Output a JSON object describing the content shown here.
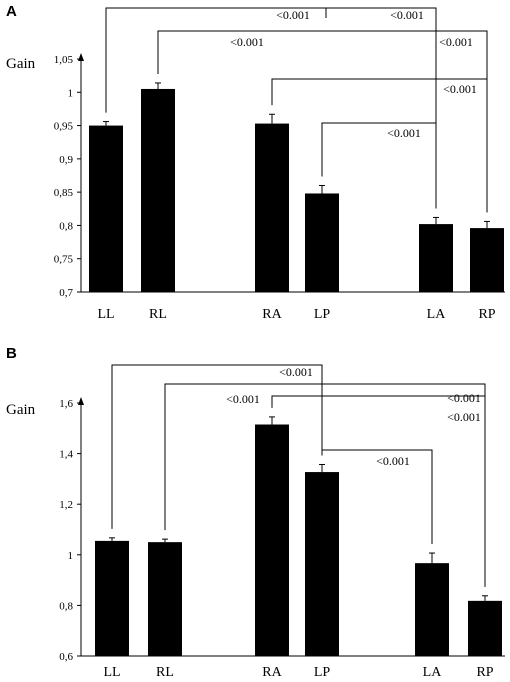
{
  "chart_data": [
    {
      "type": "bar",
      "panel_label": "A",
      "ylabel": "Gain",
      "ylim": [
        0.7,
        1.05
      ],
      "yticks": [
        0.7,
        0.75,
        0.8,
        0.85,
        0.9,
        0.95,
        1,
        1.05
      ],
      "ytick_labels": [
        "0,7",
        "0,75",
        "0,8",
        "0,85",
        "0,9",
        "0,95",
        "1",
        "1,05"
      ],
      "categories": [
        "LL",
        "RL",
        "RA",
        "LP",
        "LA",
        "RP"
      ],
      "values": [
        0.95,
        1.005,
        0.953,
        0.848,
        0.802,
        0.796
      ],
      "errors": [
        0.006,
        0.009,
        0.014,
        0.012,
        0.01,
        0.01
      ],
      "grid": false,
      "comparisons": [
        {
          "from": "LL",
          "to": "LA",
          "label": "<0.001"
        },
        {
          "from": "RL",
          "to": "RP",
          "label": "<0.001"
        },
        {
          "from": "RA",
          "to": "RP",
          "label": "<0.001"
        },
        {
          "from": "LP",
          "to": "LA",
          "label": "<0.001"
        }
      ],
      "comparison_label_positions": [
        {
          "comparison": 0,
          "label": "<0.001",
          "near": "center-left"
        },
        {
          "comparison": 0,
          "label": "<0.001",
          "near": "center-right"
        },
        {
          "comparison": 1,
          "label": "<0.001",
          "near": "left"
        },
        {
          "comparison": 1,
          "label": "<0.001",
          "near": "right"
        },
        {
          "comparison": 2,
          "label": "<0.001",
          "near": "right"
        },
        {
          "comparison": 3,
          "label": "<0.001",
          "near": "center"
        }
      ]
    },
    {
      "type": "bar",
      "panel_label": "B",
      "ylabel": "Gain",
      "ylim": [
        0.6,
        1.6
      ],
      "yticks": [
        0.6,
        0.8,
        1,
        1.2,
        1.4,
        1.6
      ],
      "ytick_labels": [
        "0,6",
        "0,8",
        "1",
        "1,2",
        "1,4",
        "1,6"
      ],
      "categories": [
        "LL",
        "RL",
        "RA",
        "LP",
        "LA",
        "RP"
      ],
      "values": [
        1.055,
        1.05,
        1.515,
        1.327,
        0.967,
        0.818
      ],
      "errors": [
        0.012,
        0.012,
        0.03,
        0.03,
        0.04,
        0.02
      ],
      "grid": false,
      "comparisons": [
        {
          "from": "LL",
          "to": "LP",
          "label": "<0.001"
        },
        {
          "from": "RL",
          "to": "RP",
          "label": "<0.001"
        },
        {
          "from": "RA",
          "to": "RP",
          "label": "<0.001"
        },
        {
          "from": "LP",
          "to": "LA",
          "label": "<0.001"
        }
      ],
      "comparison_label_positions": [
        {
          "comparison": 0,
          "label": "<0.001",
          "near": "right"
        },
        {
          "comparison": 1,
          "label": "<0.001",
          "near": "left"
        },
        {
          "comparison": 1,
          "label": "<0.001",
          "near": "right"
        },
        {
          "comparison": 2,
          "label": "<0.001",
          "near": "right"
        },
        {
          "comparison": 3,
          "label": "<0.001",
          "near": "center"
        }
      ]
    }
  ]
}
